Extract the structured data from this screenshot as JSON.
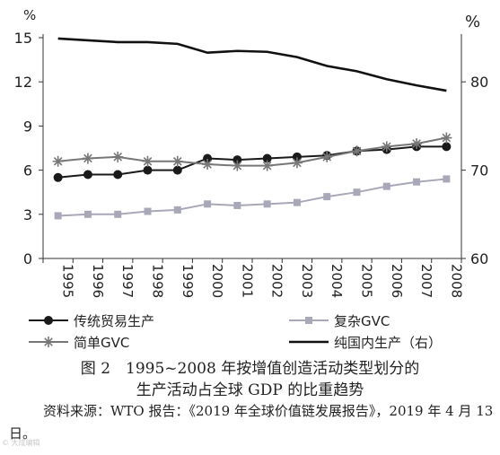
{
  "chart_data": {
    "type": "line",
    "x": [
      "1995",
      "1996",
      "1997",
      "1998",
      "1999",
      "2000",
      "2001",
      "2002",
      "2003",
      "2004",
      "2005",
      "2006",
      "2007",
      "2008"
    ],
    "y_left": {
      "unit": "%",
      "ticks": [
        0,
        3,
        6,
        9,
        12,
        15
      ],
      "ylim": [
        0,
        15
      ]
    },
    "y_right": {
      "unit": "%",
      "ticks": [
        60,
        70,
        80
      ],
      "ylim": [
        60,
        85
      ]
    },
    "series": [
      {
        "name": "传统贸易生产",
        "axis": "left",
        "marker": "circle",
        "color": "#1a1a1a",
        "values": [
          5.5,
          5.7,
          5.7,
          6.0,
          6.0,
          6.8,
          6.7,
          6.8,
          6.9,
          7.0,
          7.3,
          7.4,
          7.6,
          7.6
        ]
      },
      {
        "name": "复杂GVC",
        "axis": "left",
        "marker": "square",
        "color": "#a8a8b8",
        "values": [
          2.9,
          3.0,
          3.0,
          3.2,
          3.3,
          3.7,
          3.6,
          3.7,
          3.8,
          4.2,
          4.5,
          4.9,
          5.2,
          5.4
        ]
      },
      {
        "name": "简单GVC",
        "axis": "left",
        "marker": "star",
        "color": "#777777",
        "values": [
          6.6,
          6.8,
          6.9,
          6.6,
          6.6,
          6.4,
          6.3,
          6.3,
          6.5,
          6.9,
          7.3,
          7.6,
          7.8,
          8.2
        ]
      },
      {
        "name": "纯国内生产（右）",
        "axis": "right",
        "marker": "none",
        "color": "#111111",
        "values": [
          84.9,
          84.7,
          84.5,
          84.5,
          84.3,
          83.3,
          83.5,
          83.4,
          82.8,
          81.8,
          81.2,
          80.3,
          79.6,
          79.0
        ]
      }
    ],
    "grid": false,
    "legend_position": "bottom"
  },
  "caption": {
    "line1": "图 2　1995~2008 年按增值创造活动类型划分的",
    "line2": "生产活动占全球 GDP 的比重趋势"
  },
  "source": "资料来源：WTO 报告：《2019 年全球价值链发展报告》，2019 年 4 月 13 日。",
  "watermark": "© 大成编辑"
}
